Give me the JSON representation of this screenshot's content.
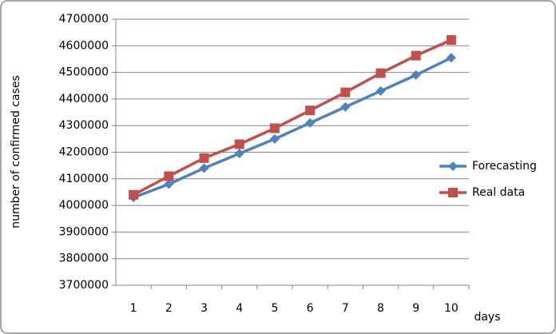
{
  "chart_data": {
    "type": "line",
    "x_label": "days",
    "y_label": "number of confirmed cases",
    "categories": [
      "1",
      "2",
      "3",
      "4",
      "5",
      "6",
      "7",
      "8",
      "9",
      "10"
    ],
    "series": [
      {
        "name": "Forecasting",
        "color": "#4f81bd",
        "marker": "diamond",
        "values": [
          4030000,
          4080000,
          4140000,
          4195000,
          4250000,
          4310000,
          4370000,
          4430000,
          4490000,
          4555000
        ]
      },
      {
        "name": "Real data",
        "color": "#c0504d",
        "marker": "square",
        "values": [
          4040000,
          4110000,
          4178000,
          4230000,
          4290000,
          4357000,
          4425000,
          4497000,
          4563000,
          4622000
        ]
      }
    ],
    "ylim": [
      3700000,
      4700000
    ],
    "yticks": [
      3700000,
      3800000,
      3900000,
      4000000,
      4100000,
      4200000,
      4300000,
      4400000,
      4500000,
      4600000,
      4700000
    ],
    "grid": true,
    "legend": "right"
  }
}
